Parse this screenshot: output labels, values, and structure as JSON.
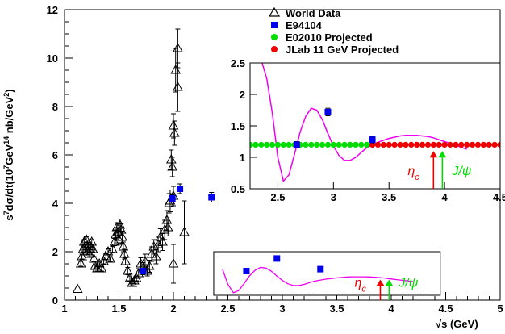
{
  "chart_data": {
    "type": "scatter",
    "xlabel": "√s (GeV)",
    "ylabel_parts": [
      "s",
      "7",
      "dσ/dt(10",
      "7",
      "GeV",
      "14",
      " nb/GeV",
      "2",
      ")"
    ],
    "xlim": [
      1,
      5
    ],
    "ylim": [
      0,
      12
    ],
    "x_ticks": [
      "1",
      "1.5",
      "2",
      "2.5",
      "3",
      "3.5",
      "4",
      "4.5",
      "5"
    ],
    "y_ticks": [
      "0",
      "2",
      "4",
      "6",
      "8",
      "10",
      "12"
    ],
    "legend": [
      {
        "label": "World Data",
        "marker": "open-triangle",
        "color": "#000000"
      },
      {
        "label": "E94104",
        "marker": "square",
        "color": "#0000ee"
      },
      {
        "label": "E02010 Projected",
        "marker": "circle",
        "color": "#00dd00"
      },
      {
        "label": "JLab 11 GeV Projected",
        "marker": "circle",
        "color": "#ee0000"
      }
    ],
    "series": [
      {
        "name": "World Data",
        "marker": "open-triangle",
        "color": "#000000",
        "points": [
          [
            1.12,
            0.45,
            0
          ],
          [
            1.15,
            1.5,
            0.1
          ],
          [
            1.16,
            1.8,
            0.1
          ],
          [
            1.17,
            2.1,
            0.1
          ],
          [
            1.18,
            2.4,
            0.1
          ],
          [
            1.19,
            2.2,
            0.1
          ],
          [
            1.2,
            2.5,
            0.12
          ],
          [
            1.21,
            2.0,
            0.1
          ],
          [
            1.22,
            2.3,
            0.1
          ],
          [
            1.23,
            1.9,
            0.1
          ],
          [
            1.24,
            2.2,
            0.1
          ],
          [
            1.25,
            2.4,
            0.1
          ],
          [
            1.26,
            2.1,
            0.1
          ],
          [
            1.27,
            1.7,
            0.1
          ],
          [
            1.28,
            1.4,
            0.1
          ],
          [
            1.3,
            1.3,
            0.1
          ],
          [
            1.32,
            1.5,
            0.1
          ],
          [
            1.34,
            1.3,
            0.1
          ],
          [
            1.36,
            1.6,
            0.1
          ],
          [
            1.38,
            1.8,
            0.12
          ],
          [
            1.4,
            2.0,
            0.12
          ],
          [
            1.42,
            1.7,
            0.1
          ],
          [
            1.44,
            2.1,
            0.12
          ],
          [
            1.46,
            2.4,
            0.15
          ],
          [
            1.47,
            2.7,
            0.2
          ],
          [
            1.48,
            3.0,
            0.2
          ],
          [
            1.49,
            2.8,
            0.2
          ],
          [
            1.5,
            2.5,
            0.2
          ],
          [
            1.51,
            3.1,
            0.25
          ],
          [
            1.52,
            2.9,
            0.25
          ],
          [
            1.53,
            2.6,
            0.25
          ],
          [
            1.54,
            2.2,
            0.2
          ],
          [
            1.55,
            1.9,
            0.2
          ],
          [
            1.56,
            1.6,
            0.15
          ],
          [
            1.58,
            1.2,
            0.15
          ],
          [
            1.6,
            0.9,
            0.1
          ],
          [
            1.62,
            0.7,
            0.1
          ],
          [
            1.64,
            0.8,
            0.1
          ],
          [
            1.66,
            0.9,
            0.1
          ],
          [
            1.68,
            1.1,
            0.2
          ],
          [
            1.7,
            1.5,
            0.25
          ],
          [
            1.72,
            1.3,
            0.25
          ],
          [
            1.74,
            1.6,
            0.3
          ],
          [
            1.76,
            1.2,
            0.2
          ],
          [
            1.78,
            1.4,
            0.25
          ],
          [
            1.8,
            1.9,
            0.3
          ],
          [
            1.82,
            2.2,
            0.3
          ],
          [
            1.84,
            1.8,
            0.3
          ],
          [
            1.86,
            2.3,
            0.3
          ],
          [
            1.88,
            2.6,
            0.35
          ],
          [
            1.9,
            2.4,
            0.35
          ],
          [
            1.92,
            2.9,
            0.4
          ],
          [
            1.94,
            3.3,
            0.4
          ],
          [
            1.95,
            3.0,
            0.35
          ],
          [
            1.97,
            4.1,
            0.45
          ],
          [
            1.98,
            5.8,
            0.4
          ],
          [
            1.99,
            5.5,
            0.4
          ],
          [
            2.0,
            7.2,
            0.5
          ],
          [
            2.01,
            6.9,
            0.5
          ],
          [
            2.02,
            9.5,
            0.9
          ],
          [
            2.04,
            8.8,
            1.0
          ],
          [
            2.04,
            10.4,
            0.8
          ],
          [
            2.1,
            2.8,
            1.3
          ],
          [
            2.0,
            1.5,
            0.8
          ],
          [
            1.96,
            4.0,
            0.4
          ],
          [
            2.0,
            4.3,
            0.4
          ]
        ]
      },
      {
        "name": "E94104",
        "marker": "square",
        "color": "#0000ee",
        "points": [
          [
            1.72,
            1.2,
            0.08
          ],
          [
            1.99,
            4.2,
            0.15
          ],
          [
            2.06,
            4.6,
            0.2
          ],
          [
            2.35,
            4.25,
            0.2
          ]
        ]
      }
    ],
    "model_curve": {
      "color": "#ee00ee",
      "x": [
        2.3,
        2.35,
        2.4,
        2.45,
        2.5,
        2.55,
        2.6,
        2.65,
        2.7,
        2.75,
        2.8,
        2.85,
        2.9,
        2.95,
        3.0,
        3.05,
        3.1,
        3.15,
        3.2,
        3.25,
        3.3,
        3.35,
        3.4,
        3.45,
        3.5,
        3.55,
        3.6,
        3.65,
        3.7,
        3.75,
        3.8,
        3.85,
        3.9,
        3.95,
        4.0,
        4.05,
        4.1,
        4.15,
        4.2
      ],
      "y": [
        2.6,
        2.55,
        2.25,
        1.7,
        1.0,
        0.62,
        0.72,
        1.05,
        1.4,
        1.65,
        1.78,
        1.75,
        1.6,
        1.38,
        1.18,
        1.03,
        0.95,
        0.95,
        1.0,
        1.08,
        1.15,
        1.2,
        1.24,
        1.27,
        1.3,
        1.32,
        1.34,
        1.35,
        1.35,
        1.35,
        1.34,
        1.33,
        1.31,
        1.28,
        1.25,
        1.22,
        1.19,
        1.16,
        1.13
      ]
    },
    "inset": {
      "xlim": [
        2.25,
        4.5
      ],
      "ylim": [
        0.5,
        2.5
      ],
      "x_ticks": [
        "2.5",
        "3",
        "3.5",
        "4",
        "4.5"
      ],
      "y_ticks": [
        "0.5",
        "1",
        "1.5",
        "2",
        "2.5"
      ],
      "e94104": [
        [
          2.67,
          1.2,
          0.05
        ],
        [
          2.95,
          1.72,
          0.06
        ],
        [
          3.35,
          1.28,
          0.05
        ]
      ],
      "e02010_projected": {
        "x_from": 2.25,
        "x_to": 3.35,
        "step": 0.05,
        "y": 1.2,
        "err": 0.02
      },
      "jlab11_projected": {
        "x_from": 3.35,
        "x_to": 4.5,
        "step": 0.05,
        "y": 1.2,
        "err": 0.02
      }
    },
    "overlay_box": {
      "x_from": 2.37,
      "x_to": 4.45,
      "y_from": 0.2,
      "y_to": 2.0
    },
    "overlay_e94104": [
      [
        2.67,
        1.2
      ],
      [
        2.95,
        1.72
      ],
      [
        3.35,
        1.28
      ]
    ],
    "annotations": {
      "eta_c": {
        "label_main": "η",
        "label_sub": "c",
        "color": "#ee0000",
        "x": 3.9
      },
      "jpsi": {
        "label": "J/ψ",
        "color": "#00dd00",
        "x": 3.98
      }
    }
  }
}
